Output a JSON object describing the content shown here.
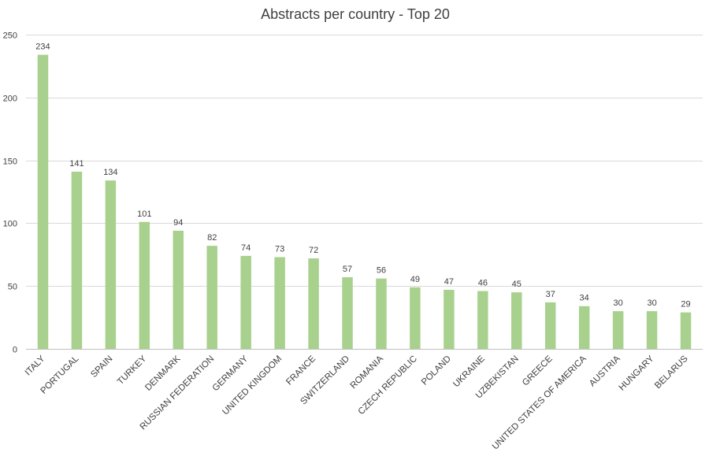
{
  "chart_data": {
    "type": "bar",
    "title": "Abstracts per country - Top 20",
    "xlabel": "",
    "ylabel": "",
    "ylim": [
      0,
      250
    ],
    "yticks": [
      0,
      50,
      100,
      150,
      200,
      250
    ],
    "grid": true,
    "legend": "none",
    "bar_color": "#a9d18e",
    "categories": [
      "ITALY",
      "PORTUGAL",
      "SPAIN",
      "TURKEY",
      "DENMARK",
      "RUSSIAN FEDERATION",
      "GERMANY",
      "UNITED KINGDOM",
      "FRANCE",
      "SWITZERLAND",
      "ROMANIA",
      "CZECH REPUBLIC",
      "POLAND",
      "UKRAINE",
      "UZBEKISTAN",
      "GREECE",
      "UNITED STATES OF AMERICA",
      "AUSTRIA",
      "HUNGARY",
      "BELARUS"
    ],
    "values": [
      234,
      141,
      134,
      101,
      94,
      82,
      74,
      73,
      72,
      57,
      56,
      49,
      47,
      46,
      45,
      37,
      34,
      30,
      30,
      29
    ]
  }
}
